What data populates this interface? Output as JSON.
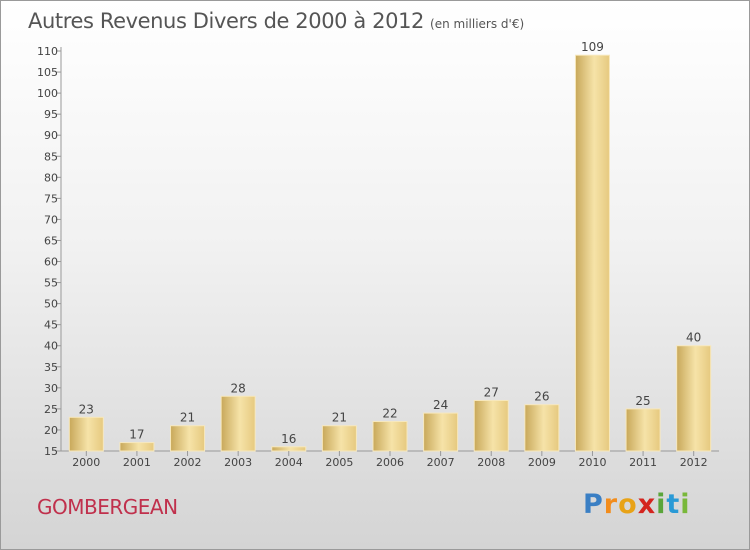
{
  "header": {
    "title": "Autres Revenus Divers de 2000 à 2012",
    "unit": "(en milliers d'€)"
  },
  "location": "GOMBERGEAN",
  "brand": {
    "letters": [
      "P",
      "r",
      "o",
      "x",
      "i",
      "t",
      "i"
    ],
    "colors": [
      "#3a7fc4",
      "#f28c1b",
      "#e8a317",
      "#d4251f",
      "#5aa53a",
      "#2a9ad6",
      "#79b83a"
    ]
  },
  "chart_data": {
    "type": "bar",
    "categories": [
      "2000",
      "2001",
      "2002",
      "2003",
      "2004",
      "2005",
      "2006",
      "2007",
      "2008",
      "2009",
      "2010",
      "2011",
      "2012"
    ],
    "values": [
      23,
      17,
      21,
      28,
      16,
      21,
      22,
      24,
      27,
      26,
      109,
      25,
      40
    ],
    "ylim": [
      15,
      110
    ],
    "yticks": [
      15,
      20,
      25,
      30,
      35,
      40,
      45,
      50,
      55,
      60,
      65,
      70,
      75,
      80,
      85,
      90,
      95,
      100,
      105,
      110
    ],
    "grid": false,
    "colors": {
      "bar": "#e6c97f",
      "bar_light": "#f6e3a8",
      "bar_dark": "#c8a85a"
    }
  }
}
